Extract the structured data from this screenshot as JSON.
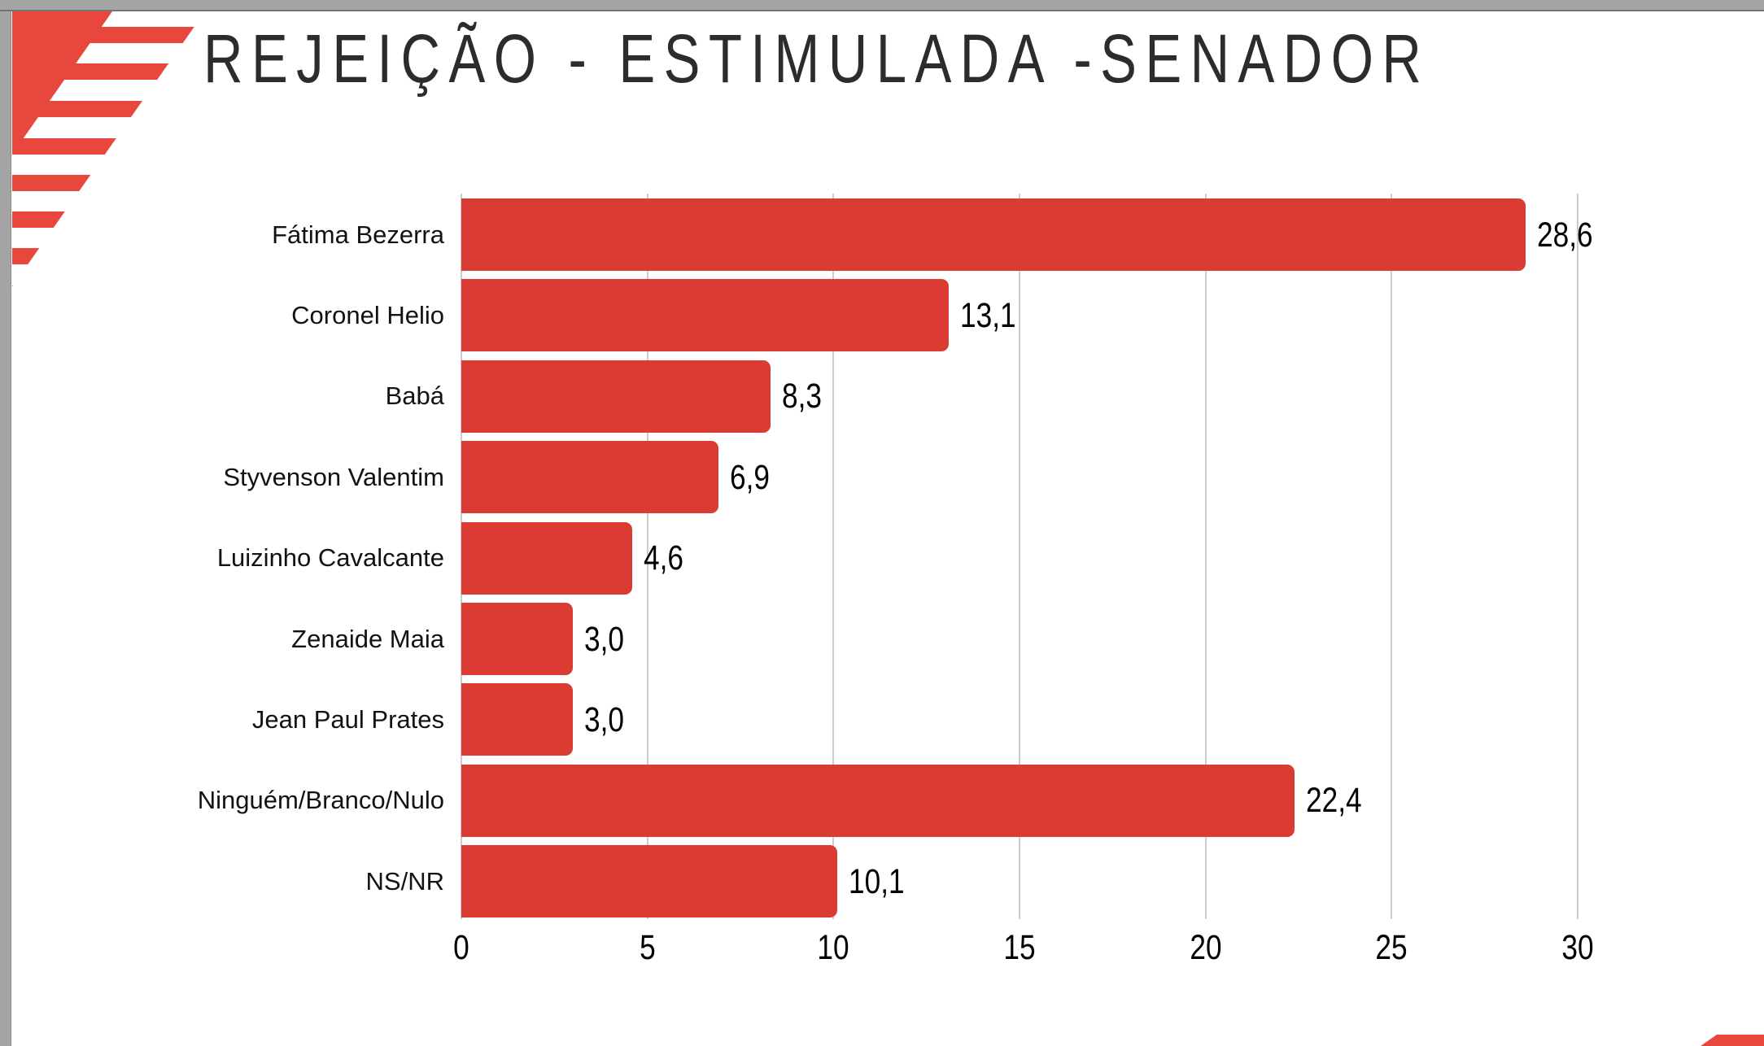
{
  "slide": {
    "title": "REJEIÇÃO - ESTIMULADA -SENADOR",
    "background": "#ffffff"
  },
  "window": {
    "chrome_color": "#a5a5a5"
  },
  "decor": {
    "brand_mark": "diagonal-stripes-logo",
    "corner_mark": "diagonal-stripe-corner",
    "stripe_color": "#e8473d"
  },
  "chart_data": {
    "type": "bar",
    "orientation": "horizontal",
    "title": "REJEIÇÃO - ESTIMULADA -SENADOR",
    "categories": [
      "Fátima Bezerra",
      "Coronel Helio",
      "Babá",
      "Styvenson Valentim",
      "Luizinho Cavalcante",
      "Zenaide Maia",
      "Jean Paul Prates",
      "Ninguém/Branco/Nulo",
      "NS/NR"
    ],
    "values": [
      28.6,
      13.1,
      8.3,
      6.9,
      4.6,
      3.0,
      3.0,
      22.4,
      10.1
    ],
    "value_labels": [
      "28,6",
      "13,1",
      "8,3",
      "6,9",
      "4,6",
      "3,0",
      "3,0",
      "22,4",
      "10,1"
    ],
    "x_ticks": [
      0,
      5,
      10,
      15,
      20,
      25,
      30
    ],
    "x_tick_labels": [
      "0",
      "5",
      "10",
      "15",
      "20",
      "25",
      "30"
    ],
    "xlim": [
      0,
      31.5
    ],
    "xlabel": "",
    "ylabel": "",
    "grid": true,
    "legend": false,
    "bar_color": "#da3b33",
    "gridline_color": "#cccccc",
    "label_color": "#121212",
    "value_color": "#000000"
  }
}
